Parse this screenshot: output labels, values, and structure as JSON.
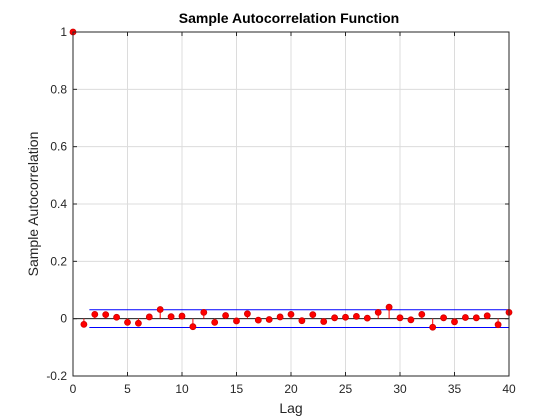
{
  "chart_data": {
    "type": "scatter",
    "title": "Sample Autocorrelation Function",
    "xlabel": "Lag",
    "ylabel": "Sample Autocorrelation",
    "xlim": [
      0,
      40
    ],
    "ylim": [
      -0.2,
      1
    ],
    "xticks": [
      0,
      5,
      10,
      15,
      20,
      25,
      30,
      35,
      40
    ],
    "xtick_labels": [
      "0",
      "5",
      "10",
      "15",
      "20",
      "25",
      "30",
      "35",
      "40"
    ],
    "yticks": [
      -0.2,
      0,
      0.2,
      0.4,
      0.6,
      0.8,
      1
    ],
    "ytick_labels": [
      "-0.2",
      "0",
      "0.2",
      "0.4",
      "0.6",
      "0.8",
      "1"
    ],
    "grid": true,
    "colors": {
      "stem": "#ff0000",
      "marker": "#ff0000",
      "marker_edge": "#d00000",
      "bound": "#0000ff",
      "zero_line": "#000000",
      "grid": "#dcdcdc",
      "axes": "#262626"
    },
    "confidence_bounds": {
      "upper": 0.031,
      "lower": -0.031,
      "x_range": [
        1.5,
        40
      ]
    },
    "series": [
      {
        "x": [
          0,
          1,
          2,
          3,
          4,
          5,
          6,
          7,
          8,
          9,
          10,
          11,
          12,
          13,
          14,
          15,
          16,
          17,
          18,
          19,
          20,
          21,
          22,
          23,
          24,
          25,
          26,
          27,
          28,
          29,
          30,
          31,
          32,
          33,
          34,
          35,
          36,
          37,
          38,
          39,
          40
        ],
        "values": [
          1.0,
          -0.02,
          0.015,
          0.014,
          0.005,
          -0.013,
          -0.016,
          0.006,
          0.032,
          0.007,
          0.009,
          -0.028,
          0.022,
          -0.013,
          0.011,
          -0.008,
          0.017,
          -0.005,
          -0.003,
          0.006,
          0.015,
          -0.007,
          0.014,
          -0.01,
          0.003,
          0.005,
          0.008,
          0.002,
          0.022,
          0.04,
          0.003,
          -0.004,
          0.015,
          -0.03,
          0.003,
          -0.011,
          0.004,
          0.003,
          0.01,
          -0.021,
          0.022
        ]
      }
    ]
  }
}
